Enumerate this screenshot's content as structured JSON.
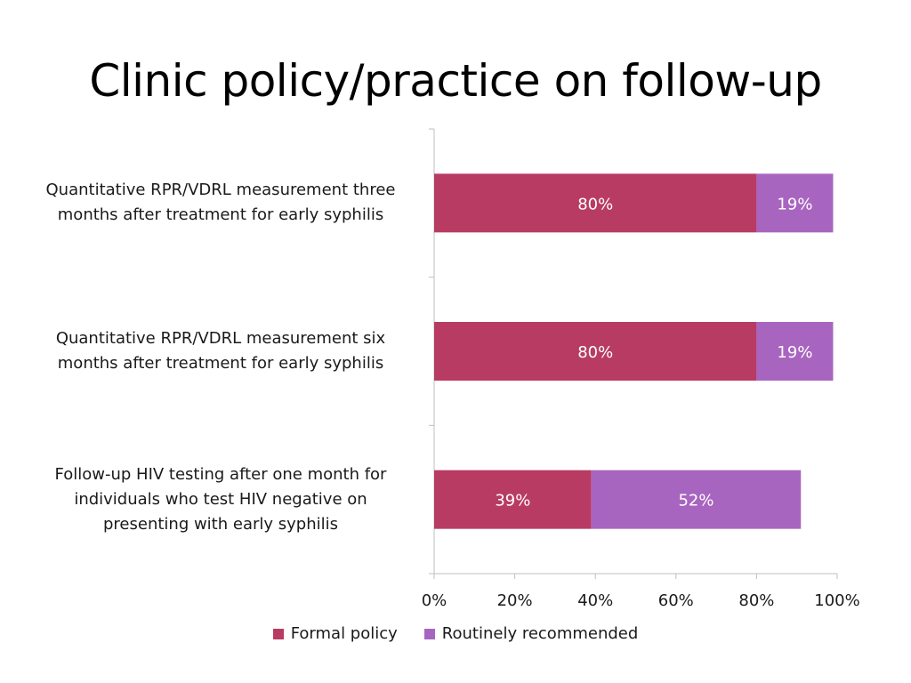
{
  "slide": {
    "title": "Clinic policy/practice on follow-up"
  },
  "chart_data": {
    "type": "bar",
    "orientation": "horizontal",
    "stacked": true,
    "categories": [
      "Quantitative RPR/VDRL measurement three months after treatment for early syphilis",
      "Quantitative RPR/VDRL measurement six months after treatment for early syphilis",
      "Follow-up HIV testing after one month for individuals who test HIV negative on presenting with early syphilis"
    ],
    "category_lines": [
      [
        "Quantitative RPR/VDRL measurement three",
        "months after treatment for early syphilis"
      ],
      [
        "Quantitative RPR/VDRL measurement six",
        "months after treatment for early syphilis"
      ],
      [
        "Follow-up HIV testing after one month for",
        "individuals who test HIV negative on",
        "presenting with early syphilis"
      ]
    ],
    "series": [
      {
        "name": "Formal policy",
        "color": "#b83b64",
        "values": [
          80,
          80,
          39
        ],
        "labels": [
          "80%",
          "80%",
          "39%"
        ]
      },
      {
        "name": "Routinely recommended",
        "color": "#a865c0",
        "values": [
          19,
          19,
          52
        ],
        "labels": [
          "19%",
          "19%",
          "52%"
        ]
      }
    ],
    "xlim": [
      0,
      100
    ],
    "x_ticks": [
      0,
      20,
      40,
      60,
      80,
      100
    ],
    "x_tick_labels": [
      "0%",
      "20%",
      "40%",
      "60%",
      "80%",
      "100%"
    ],
    "grid": false,
    "legend_position": "bottom"
  }
}
